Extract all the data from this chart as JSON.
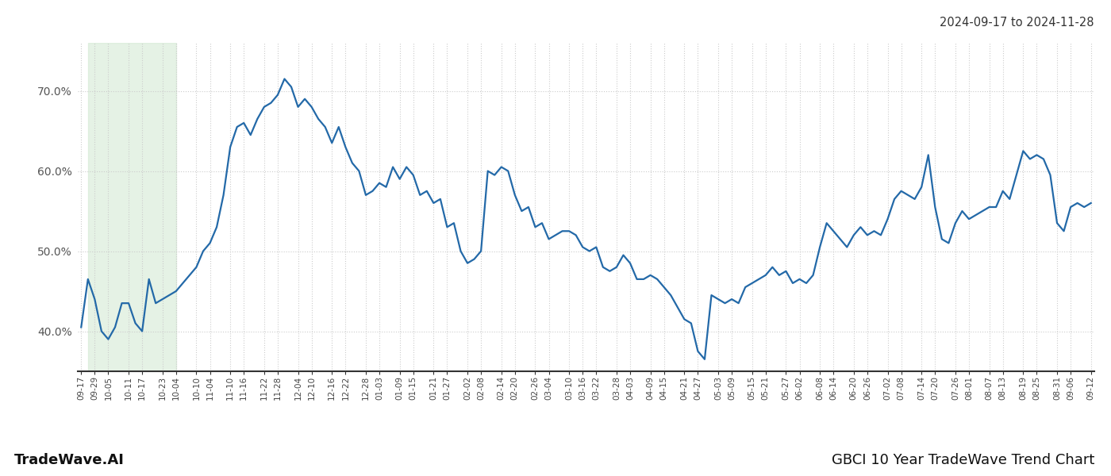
{
  "title_top_right": "2024-09-17 to 2024-11-28",
  "title_bottom_right": "GBCI 10 Year TradeWave Trend Chart",
  "title_bottom_left": "TradeWave.AI",
  "line_color": "#2369a8",
  "line_width": 1.6,
  "bg_color": "#ffffff",
  "shade_color": "#d0e8d0",
  "shade_alpha": 0.55,
  "ylim": [
    35,
    76
  ],
  "yticks": [
    40,
    50,
    60,
    70
  ],
  "ytick_labels": [
    "40.0%",
    "50.0%",
    "60.0%",
    "70.0%"
  ],
  "grid_color": "#cccccc",
  "shade_xstart": 1,
  "shade_xend": 14,
  "x_labels": [
    "09-17",
    "09-29",
    "10-05",
    "10-11",
    "10-17",
    "10-23",
    "10-04",
    "10-10",
    "11-04",
    "11-10",
    "11-16",
    "11-22",
    "11-28",
    "12-04",
    "12-10",
    "12-16",
    "12-22",
    "12-28",
    "01-03",
    "01-09",
    "01-15",
    "01-21",
    "01-27",
    "02-02",
    "02-08",
    "02-14",
    "02-20",
    "02-26",
    "03-04",
    "03-10",
    "03-16",
    "03-22",
    "03-28",
    "04-03",
    "04-09",
    "04-15",
    "04-21",
    "04-27",
    "05-03",
    "05-09",
    "05-15",
    "05-21",
    "05-27",
    "06-02",
    "06-08",
    "06-14",
    "06-20",
    "06-26",
    "07-02",
    "07-08",
    "07-14",
    "07-20",
    "07-26",
    "08-01",
    "08-07",
    "08-13",
    "08-19",
    "08-25",
    "08-31",
    "09-06",
    "09-12"
  ],
  "values": [
    40.5,
    46.5,
    44.0,
    40.0,
    39.0,
    40.5,
    43.5,
    43.5,
    41.0,
    40.0,
    46.5,
    43.5,
    44.0,
    44.5,
    45.0,
    46.0,
    47.0,
    48.0,
    50.0,
    51.0,
    53.0,
    57.0,
    63.0,
    65.5,
    66.0,
    64.5,
    66.5,
    68.0,
    68.5,
    69.5,
    71.5,
    70.5,
    68.0,
    69.0,
    68.0,
    66.5,
    65.5,
    63.5,
    65.5,
    63.0,
    61.0,
    60.0,
    57.0,
    57.5,
    58.5,
    58.0,
    60.5,
    59.0,
    60.5,
    59.5,
    57.0,
    57.5,
    56.0,
    56.5,
    53.0,
    53.5,
    50.0,
    48.5,
    49.0,
    50.0,
    60.0,
    59.5,
    60.5,
    60.0,
    57.0,
    55.0,
    55.5,
    53.0,
    53.5,
    51.5,
    52.0,
    52.5,
    52.5,
    52.0,
    50.5,
    50.0,
    50.5,
    48.0,
    47.5,
    48.0,
    49.5,
    48.5,
    46.5,
    46.5,
    47.0,
    46.5,
    45.5,
    44.5,
    43.0,
    41.5,
    41.0,
    37.5,
    36.5,
    44.5,
    44.0,
    43.5,
    44.0,
    43.5,
    45.5,
    46.0,
    46.5,
    47.0,
    48.0,
    47.0,
    47.5,
    46.0,
    46.5,
    46.0,
    47.0,
    50.5,
    53.5,
    52.5,
    51.5,
    50.5,
    52.0,
    53.0,
    52.0,
    52.5,
    52.0,
    54.0,
    56.5,
    57.5,
    57.0,
    56.5,
    58.0,
    62.0,
    55.5,
    51.5,
    51.0,
    53.5,
    55.0,
    54.0,
    54.5,
    55.0,
    55.5,
    55.5,
    57.5,
    56.5,
    59.5,
    62.5,
    61.5,
    62.0,
    61.5,
    59.5,
    53.5,
    52.5,
    55.5,
    56.0,
    55.5,
    56.0
  ]
}
